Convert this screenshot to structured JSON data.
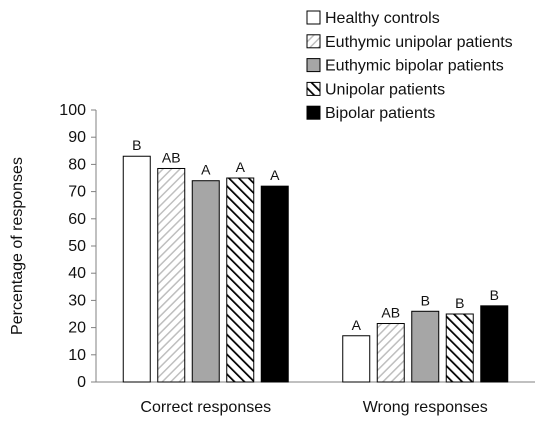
{
  "chart_data": {
    "type": "bar",
    "categories": [
      "Correct responses",
      "Wrong responses"
    ],
    "ylabel": "Percentage of responses",
    "xlabel": "",
    "ylim": [
      0,
      100
    ],
    "yticks": [
      0,
      10,
      20,
      30,
      40,
      50,
      60,
      70,
      80,
      90,
      100
    ],
    "grid": false,
    "legend_position": "top-right",
    "series": [
      {
        "name": "Healthy controls",
        "values": [
          83,
          17
        ],
        "labels": [
          "B",
          "A"
        ],
        "pattern": "white"
      },
      {
        "name": "Euthymic unipolar patients",
        "values": [
          78.5,
          21.5
        ],
        "labels": [
          "AB",
          "AB"
        ],
        "pattern": "light-hatch"
      },
      {
        "name": "Euthymic bipolar patients",
        "values": [
          74,
          26
        ],
        "labels": [
          "A",
          "B"
        ],
        "pattern": "gray"
      },
      {
        "name": "Unipolar patients",
        "values": [
          75,
          25
        ],
        "labels": [
          "A",
          "B"
        ],
        "pattern": "dark-hatch"
      },
      {
        "name": "Bipolar patients",
        "values": [
          72,
          28
        ],
        "labels": [
          "A",
          "B"
        ],
        "pattern": "black"
      }
    ],
    "colors": {
      "gray_fill": "#a6a6a6",
      "black_fill": "#000000",
      "light_hatch": "#bfbfbf",
      "axis": "#808080"
    }
  }
}
